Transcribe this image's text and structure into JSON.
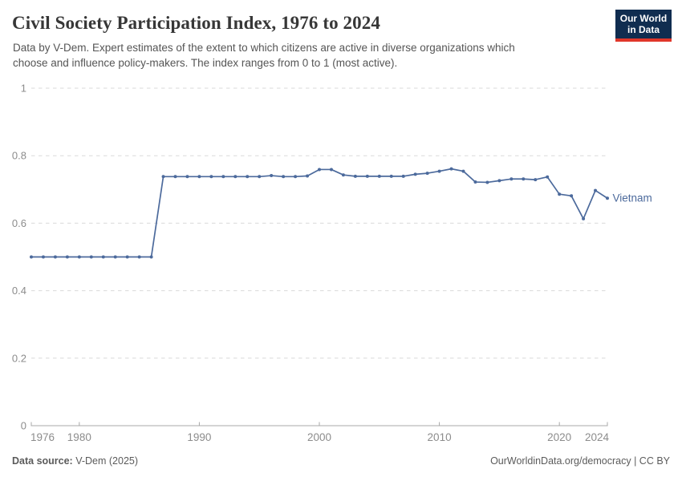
{
  "header": {
    "title": "Civil Society Participation Index, 1976 to 2024",
    "subtitle_lines": [
      "Data by V-Dem. Expert estimates of the extent to which citizens are active in diverse organizations which",
      "choose and influence policy-makers. The index ranges from 0 to 1 (most active)."
    ],
    "logo": {
      "line1": "Our World",
      "line2": "in Data"
    }
  },
  "footer": {
    "source_label": "Data source:",
    "source_value": " V-Dem (2025)",
    "attribution": "OurWorldinData.org/democracy | CC BY"
  },
  "colors": {
    "line": "#4C6A9C",
    "end_label": "#4C6A9C",
    "grid": "#d9d9d9",
    "axis": "#a8a8a8",
    "tick_text": "#8c8c8c",
    "logo_bg": "#102D50",
    "logo_red": "#E0362A"
  },
  "chart_data": {
    "type": "line",
    "title": "Civil Society Participation Index, 1976 to 2024",
    "xlabel": "",
    "ylabel": "",
    "xlim": [
      1976,
      2024
    ],
    "ylim": [
      0,
      1
    ],
    "xticks": [
      1976,
      1980,
      1990,
      2000,
      2010,
      2020,
      2024
    ],
    "yticks": [
      0,
      0.2,
      0.4,
      0.6,
      0.8,
      1
    ],
    "grid": "horizontal-dashed",
    "legend_position": "end-of-line-label",
    "series": [
      {
        "name": "Vietnam",
        "x": [
          1976,
          1977,
          1978,
          1979,
          1980,
          1981,
          1982,
          1983,
          1984,
          1985,
          1986,
          1987,
          1988,
          1989,
          1990,
          1991,
          1992,
          1993,
          1994,
          1995,
          1996,
          1997,
          1998,
          1999,
          2000,
          2001,
          2002,
          2003,
          2004,
          2005,
          2006,
          2007,
          2008,
          2009,
          2010,
          2011,
          2012,
          2013,
          2014,
          2015,
          2016,
          2017,
          2018,
          2019,
          2020,
          2021,
          2022,
          2023,
          2024
        ],
        "values": [
          0.5,
          0.5,
          0.5,
          0.5,
          0.5,
          0.5,
          0.5,
          0.5,
          0.5,
          0.5,
          0.5,
          0.738,
          0.738,
          0.738,
          0.738,
          0.738,
          0.738,
          0.738,
          0.738,
          0.738,
          0.741,
          0.738,
          0.738,
          0.74,
          0.759,
          0.759,
          0.743,
          0.739,
          0.739,
          0.739,
          0.739,
          0.739,
          0.745,
          0.748,
          0.754,
          0.761,
          0.754,
          0.722,
          0.721,
          0.726,
          0.731,
          0.731,
          0.729,
          0.737,
          0.686,
          0.681,
          0.613,
          0.697,
          0.674
        ]
      }
    ]
  }
}
